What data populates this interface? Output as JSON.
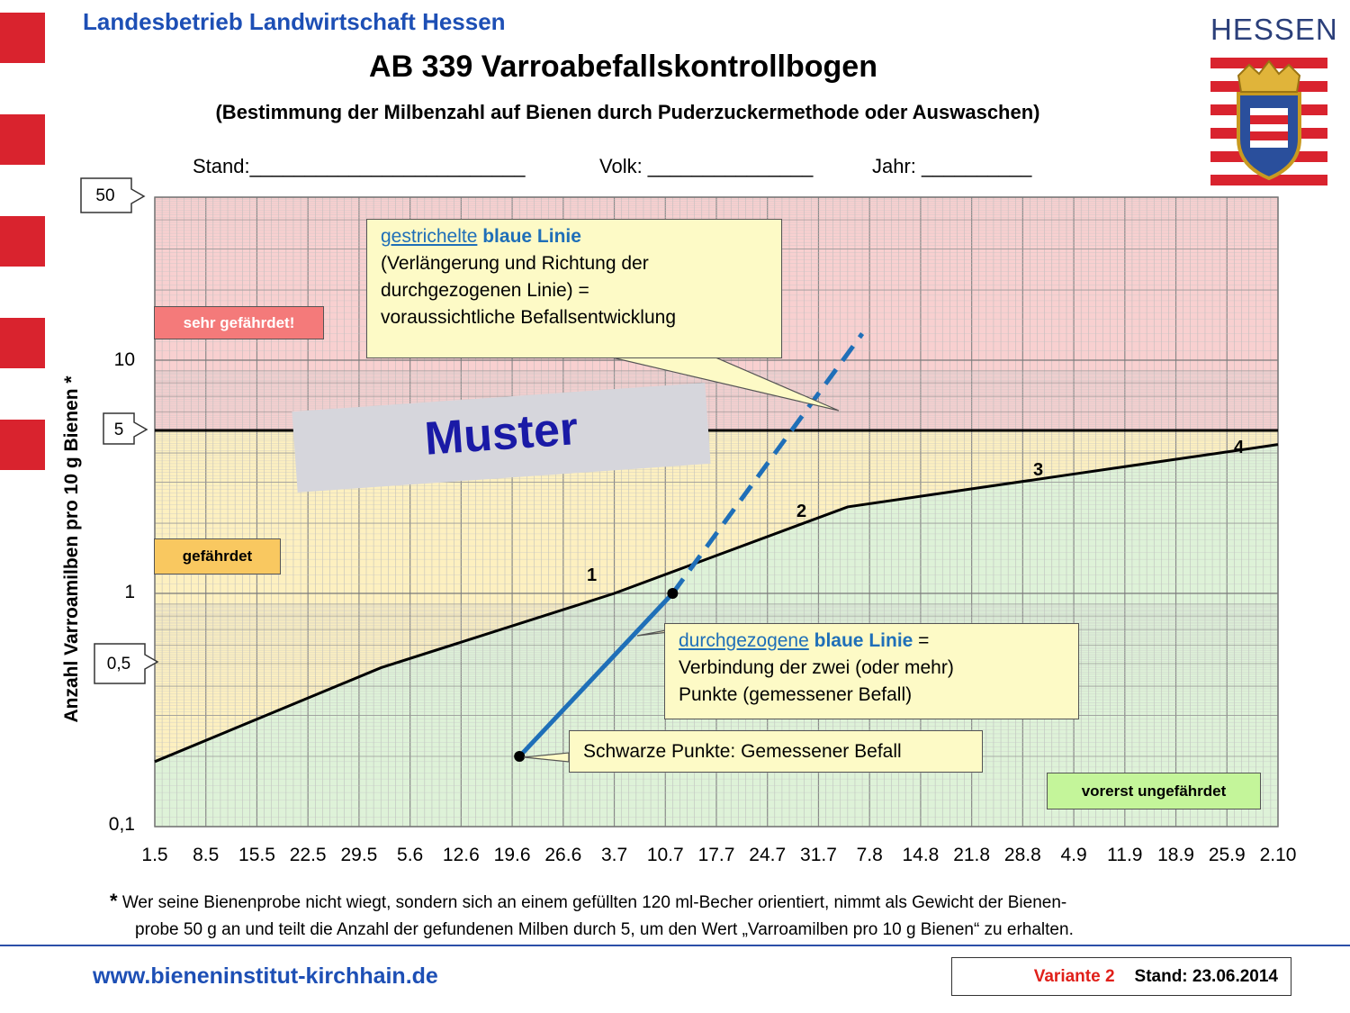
{
  "header": {
    "organization": "Landesbetrieb Landwirtschaft Hessen",
    "title": "AB 339 Varroabefallskontrollbogen",
    "subtitle": "(Bestimmung der Milbenzahl auf Bienen durch Puderzuckermethode oder Auswaschen)",
    "logo_text": "HESSEN"
  },
  "form": {
    "stand": "Stand:_________________________",
    "volk": "Volk: _______________",
    "jahr": "Jahr: __________"
  },
  "chart_data": {
    "type": "line",
    "y_scale": "log",
    "ylim": [
      0.1,
      50
    ],
    "ylabel": "Anzahl Varroamilben pro 10 g Bienen *",
    "y_tick_labels": [
      "0,1",
      "1",
      "10"
    ],
    "y_callouts": [
      "50",
      "5",
      "0,5"
    ],
    "x_tick_labels": [
      "1.5",
      "8.5",
      "15.5",
      "22.5",
      "29.5",
      "5.6",
      "12.6",
      "19.6",
      "26.6",
      "3.7",
      "10.7",
      "17.7",
      "24.7",
      "31.7",
      "7.8",
      "14.8",
      "21.8",
      "28.8",
      "4.9",
      "11.9",
      "18.9",
      "25.9",
      "2.10"
    ],
    "zones": [
      {
        "label": "sehr gefährdet!",
        "color": "#f8d0d0"
      },
      {
        "label": "gefährdet",
        "color": "#fdf0c0"
      },
      {
        "label": "vorerst ungefährdet",
        "color": "#def2d8"
      }
    ],
    "threshold_value": 5,
    "series": [
      {
        "role": "boundary",
        "color": "#000000",
        "style": "solid",
        "x": [
          "1.5",
          "1.6",
          "3.7",
          "4.8",
          "4.9",
          "2.10"
        ],
        "values": [
          0.19,
          0.48,
          1.0,
          2.35,
          3.25,
          4.35
        ]
      },
      {
        "role": "measured",
        "color": "#1f6fb8",
        "style": "solid",
        "x": [
          "20.6",
          "11.7"
        ],
        "values": [
          0.2,
          1.0
        ]
      },
      {
        "role": "projection",
        "color": "#1f6fb8",
        "style": "dashed",
        "x": [
          "11.7",
          "6.8"
        ],
        "values": [
          1.0,
          13.0
        ]
      }
    ],
    "point_labels": [
      {
        "text": "1",
        "x": "30.6",
        "y": 1.1
      },
      {
        "text": "2",
        "x": "2.8",
        "y": 2.65
      },
      {
        "text": "3",
        "x": "1.9",
        "y": 3.65
      },
      {
        "text": "4",
        "x": "24.9",
        "y": 4.8
      }
    ],
    "watermark": "Muster",
    "annotations": {
      "dashed_note": {
        "link": "gestrichelte",
        "bold": "blaue Linie",
        "line2": "(Verlängerung und Richtung der",
        "line3": "durchgezogenen Linie) =",
        "line4": "voraussichtliche Befallsentwicklung"
      },
      "solid_note": {
        "link": "durchgezogene",
        "bold": "blaue Linie",
        "eq": " =",
        "line2": "Verbindung der zwei (oder mehr)",
        "line3": "Punkte (gemessener Befall)"
      },
      "points_note": "Schwarze Punkte: Gemessener Befall"
    }
  },
  "footnote": {
    "star": "*",
    "line1": "Wer seine Bienenprobe nicht wiegt, sondern sich an einem gefüllten 120 ml-Becher orientiert, nimmt als Gewicht der Bienen-",
    "line2": "probe 50 g an und teilt die Anzahl der gefundenen Milben durch 5, um den Wert „Varroamilben pro 10 g Bienen“ zu erhalten."
  },
  "footer": {
    "url": "www.bieneninstitut-kirchhain.de",
    "variant": "Variante 2",
    "stand": "Stand: 23.06.2014",
    "variant_color": "#e0201a"
  }
}
